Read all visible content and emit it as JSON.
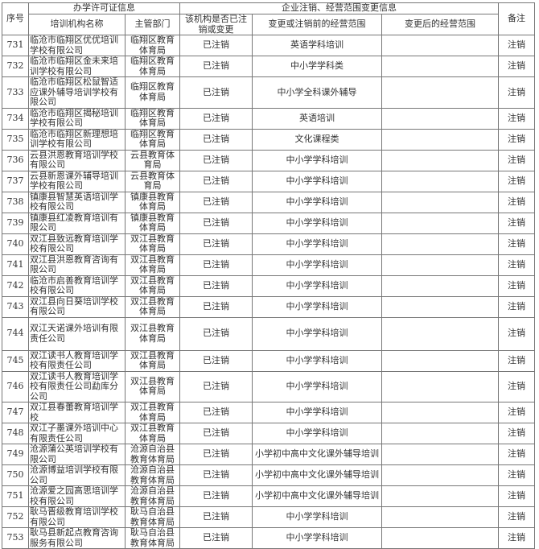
{
  "header": {
    "seq": "序号",
    "license_group": "办学许可证信息",
    "change_group": "企业注销、经营范围变更信息",
    "note": "备注",
    "name": "培训机构名称",
    "dept": "主管部门",
    "status": "该机构是否已注销或变更",
    "before": "变更或注销前的经营范围",
    "after": "变更后的经营范围"
  },
  "rows": [
    {
      "seq": "731",
      "name": "临沧市临翔区优优培训学校有限公司",
      "dept": "临翔区教育体育局",
      "status": "已注销",
      "before": "英语学科培训",
      "after": "",
      "note": "注销"
    },
    {
      "seq": "732",
      "name": "临沧市临翔区金未来培训学校有限公司",
      "dept": "临翔区教育体育局",
      "status": "已注销",
      "before": "中小学学科类",
      "after": "",
      "note": "注销"
    },
    {
      "seq": "733",
      "name": "临沧市临翔区松鼠智适应课外辅导培训学校有限公司",
      "dept": "临翔区教育体育局",
      "status": "已注销",
      "before": "中小学全科课外辅导",
      "after": "",
      "note": "注销"
    },
    {
      "seq": "734",
      "name": "临沧市临翔区揭秘培训学校有限公司",
      "dept": "临翔区教育体育局",
      "status": "已注销",
      "before": "英语培训",
      "after": "",
      "note": "注销"
    },
    {
      "seq": "735",
      "name": "临沧市临翔区新理想培训学校有限公司",
      "dept": "临翔区教育体育局",
      "status": "已注销",
      "before": "文化课程类",
      "after": "",
      "note": "注销"
    },
    {
      "seq": "736",
      "name": "云县洪恩教育培训学校有限公司",
      "dept": "云县教育体育局",
      "status": "已注销",
      "before": "中小学学科培训",
      "after": "",
      "note": "注销"
    },
    {
      "seq": "737",
      "name": "云县新恩课外辅导培训学校有限公司",
      "dept": "云县教育体育局",
      "status": "已注销",
      "before": "中小学学科培训",
      "after": "",
      "note": "注销"
    },
    {
      "seq": "738",
      "name": "镇康县智慧英语培训学校有限公司",
      "dept": "镇康县教育体育局",
      "status": "已注销",
      "before": "中小学学科培训",
      "after": "",
      "note": "注销"
    },
    {
      "seq": "739",
      "name": "镇康县红凌教育培训有限公司",
      "dept": "镇康县教育体育局",
      "status": "已注销",
      "before": "中小学学科培训",
      "after": "",
      "note": "注销"
    },
    {
      "seq": "740",
      "name": "双江县致远教育培训学校有限公司",
      "dept": "双江县教育体育局",
      "status": "已注销",
      "before": "中小学学科培训",
      "after": "",
      "note": "注销"
    },
    {
      "seq": "741",
      "name": "双江县洪恩教育咨询有限公司",
      "dept": "双江县教育体育局",
      "status": "已注销",
      "before": "中小学学科培训",
      "after": "",
      "note": "注销"
    },
    {
      "seq": "742",
      "name": "临沧市启善教育培训学校有限公司",
      "dept": "双江县教育体育局",
      "status": "已注销",
      "before": "中小学学科培训",
      "after": "",
      "note": "注销"
    },
    {
      "seq": "743",
      "name": "双江县向日葵培训学校有限公司",
      "dept": "双江县教育体育局",
      "status": "已注销",
      "before": "中小学学科培训",
      "after": "",
      "note": "注销"
    },
    {
      "seq": "744",
      "name": "双江天诺课外培训有限责任公司",
      "dept": "双江县教育体育局",
      "status": "已注销",
      "before": "中小学学科培训",
      "after": "",
      "note": "注销"
    },
    {
      "seq": "745",
      "name": "双江读书人教育培训学校有限责任公司",
      "dept": "双江县教育体育局",
      "status": "已注销",
      "before": "中小学学科培训",
      "after": "",
      "note": "注销"
    },
    {
      "seq": "746",
      "name": "双江读书人教育培训学校有限责任公司勐库分公司",
      "dept": "双江县教育体育局",
      "status": "已注销",
      "before": "中小学学科培训",
      "after": "",
      "note": "注销"
    },
    {
      "seq": "747",
      "name": "双江县春蕾教育培训学校",
      "dept": "双江县教育体育局",
      "status": "已注销",
      "before": "中小学学科培训",
      "after": "",
      "note": "注销"
    },
    {
      "seq": "748",
      "name": "双江子墨课外培训中心有限责任公司",
      "dept": "双江县教育体育局",
      "status": "已注销",
      "before": "中小学学科培训",
      "after": "",
      "note": "注销"
    },
    {
      "seq": "749",
      "name": "沧源蒲公英培训学校有限公司",
      "dept": "沧源自治县教育体育局",
      "status": "已注销",
      "before": "小学初中高中文化课外辅导培训",
      "after": "",
      "note": "注销"
    },
    {
      "seq": "750",
      "name": "沧源博益培训学校有限公司",
      "dept": "沧源自治县教育体育局",
      "status": "已注销",
      "before": "小学初中高中文化课外辅导培训",
      "after": "",
      "note": "注销"
    },
    {
      "seq": "751",
      "name": "沧源爱之园高思培训学校有限公司",
      "dept": "沧源自治县教育体育局",
      "status": "已注销",
      "before": "小学初中高中文化课外辅导培训",
      "after": "",
      "note": "注销"
    },
    {
      "seq": "752",
      "name": "耿马晋级教育培训学校有限公司",
      "dept": "耿马自治县教育体育局",
      "status": "已注销",
      "before": "中小学学科培训",
      "after": "",
      "note": "注销"
    },
    {
      "seq": "753",
      "name": "耿马县新起点教育咨询服务有限公司",
      "dept": "耿马自治县教育体育局",
      "status": "已注销",
      "before": "中小学学科培训",
      "after": "",
      "note": "注销"
    }
  ]
}
